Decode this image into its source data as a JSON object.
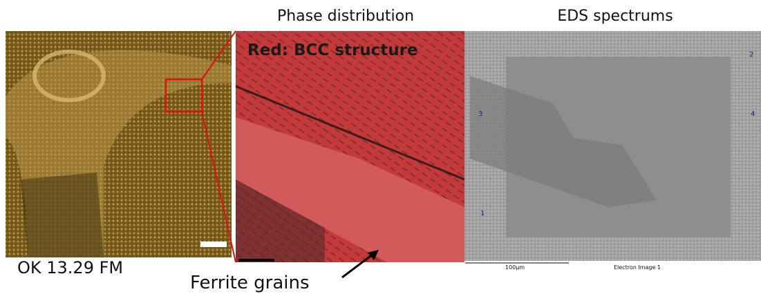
{
  "header": {
    "phase_title": "Phase distribution",
    "eds_title": "EDS spectrums"
  },
  "left_panel": {
    "label": "OK 13.29 FM"
  },
  "phase_panel": {
    "overlay_label": "Red: BCC structure",
    "annotation": "Ferrite grains"
  },
  "eds_panel": {
    "scale_label": "100µm",
    "caption": "Electron Image 1",
    "spectrum_markers": [
      "2",
      "3",
      "4",
      "1"
    ]
  }
}
